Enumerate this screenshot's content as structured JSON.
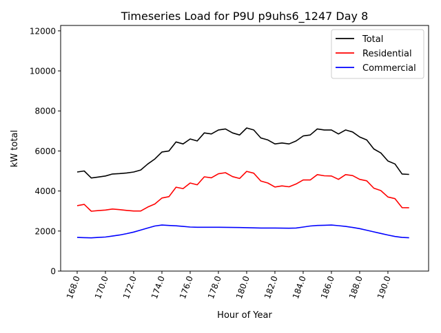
{
  "chart_data": {
    "type": "line",
    "title": "Timeseries Load for P9U p9uhs6_1247  Day 8",
    "xlabel": "Hour of Year",
    "ylabel": "kW total",
    "xlim": [
      166.83,
      192.88
    ],
    "ylim": [
      0,
      12270
    ],
    "xticks": [
      168,
      170,
      172,
      174,
      176,
      178,
      180,
      182,
      184,
      186,
      188,
      190
    ],
    "xtick_labels": [
      "168.0",
      "170.0",
      "172.0",
      "174.0",
      "176.0",
      "178.0",
      "180.0",
      "182.0",
      "184.0",
      "186.0",
      "188.0",
      "190.0"
    ],
    "yticks": [
      0,
      2000,
      4000,
      6000,
      8000,
      10000,
      12000
    ],
    "ytick_labels": [
      "0",
      "2000",
      "4000",
      "6000",
      "8000",
      "10000",
      "12000"
    ],
    "grid": false,
    "legend": "top-right",
    "x": [
      168,
      168.5,
      169,
      169.5,
      170,
      170.5,
      171,
      171.5,
      172,
      172.5,
      173,
      173.5,
      174,
      174.5,
      175,
      175.5,
      176,
      176.5,
      177,
      177.5,
      178,
      178.5,
      179,
      179.5,
      180,
      180.5,
      181,
      181.5,
      182,
      182.5,
      183,
      183.5,
      184,
      184.5,
      185,
      185.5,
      186,
      186.5,
      187,
      187.5,
      188,
      188.5,
      189,
      189.5,
      190,
      190.5,
      191,
      191.5
    ],
    "series": [
      {
        "name": "Total",
        "color": "#000000",
        "values": [
          4950,
          5000,
          4650,
          4700,
          4750,
          4850,
          4870,
          4900,
          4950,
          5050,
          5350,
          5600,
          5950,
          6000,
          6450,
          6350,
          6600,
          6500,
          6900,
          6850,
          7050,
          7100,
          6900,
          6800,
          7150,
          7050,
          6650,
          6550,
          6350,
          6400,
          6350,
          6500,
          6750,
          6800,
          7100,
          7050,
          7050,
          6850,
          7050,
          6950,
          6700,
          6550,
          6100,
          5900,
          5500,
          5350,
          4850,
          4830
        ]
      },
      {
        "name": "Residential",
        "color": "#ff0000",
        "values": [
          3270,
          3330,
          2990,
          3020,
          3050,
          3100,
          3070,
          3030,
          3000,
          3000,
          3200,
          3350,
          3650,
          3720,
          4190,
          4120,
          4400,
          4310,
          4710,
          4660,
          4860,
          4915,
          4720,
          4625,
          4980,
          4890,
          4500,
          4400,
          4200,
          4255,
          4210,
          4350,
          4550,
          4550,
          4820,
          4760,
          4750,
          4580,
          4820,
          4770,
          4580,
          4510,
          4140,
          4020,
          3700,
          3620,
          3170,
          3165
        ]
      },
      {
        "name": "Commercial",
        "color": "#0000ff",
        "values": [
          1680,
          1670,
          1660,
          1680,
          1700,
          1750,
          1800,
          1870,
          1950,
          2050,
          2150,
          2250,
          2300,
          2280,
          2260,
          2230,
          2200,
          2190,
          2190,
          2190,
          2190,
          2185,
          2180,
          2175,
          2170,
          2160,
          2150,
          2150,
          2150,
          2145,
          2140,
          2150,
          2200,
          2250,
          2280,
          2290,
          2300,
          2270,
          2230,
          2180,
          2120,
          2040,
          1960,
          1880,
          1800,
          1730,
          1680,
          1665
        ]
      }
    ]
  }
}
